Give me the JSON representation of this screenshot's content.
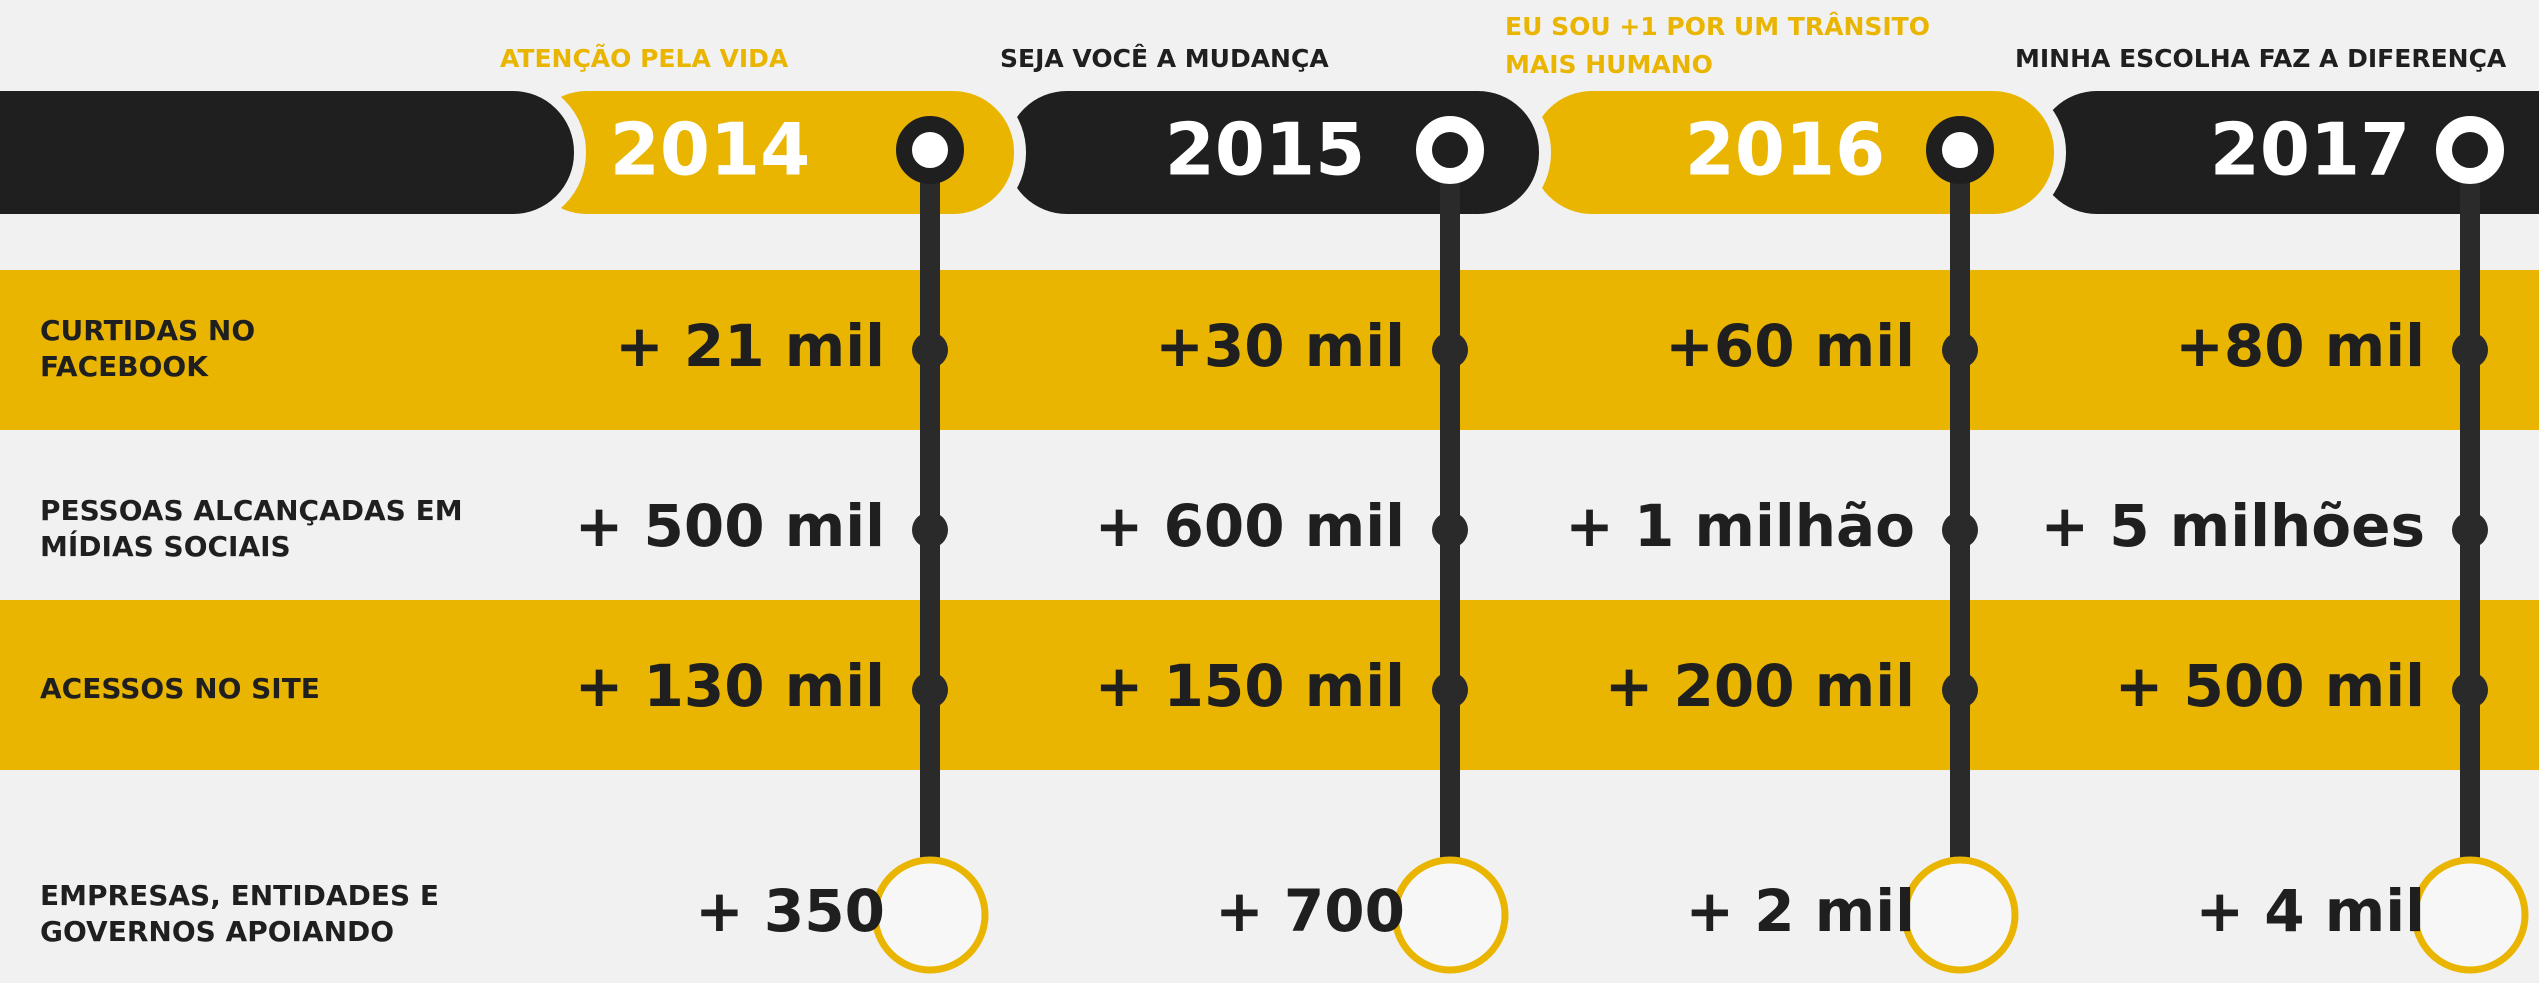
{
  "campaigns": [
    {
      "slogan": [
        "ATENÇÃO PELA VIDA"
      ],
      "year": "2014"
    },
    {
      "slogan": [
        "SEJA VOCÊ A MUDANÇA"
      ],
      "year": "2015"
    },
    {
      "slogan": [
        "EU SOU +1 POR UM TRÂNSITO",
        "MAIS HUMANO"
      ],
      "year": "2016"
    },
    {
      "slogan": [
        "MINHA ESCOLHA FAZ A DIFERENÇA"
      ],
      "year": "2017"
    }
  ],
  "rows": [
    {
      "label": [
        "CURTIDAS NO",
        "FACEBOOK"
      ],
      "values": [
        "+ 21 mil",
        "+30 mil",
        "+60 mil",
        "+80 mil"
      ]
    },
    {
      "label": [
        "PESSOAS ALCANÇADAS EM",
        "MÍDIAS SOCIAIS"
      ],
      "values": [
        "+ 500 mil",
        "+ 600 mil",
        "+ 1 milhão",
        "+ 5 milhões"
      ]
    },
    {
      "label": [
        "ACESSOS NO SITE"
      ],
      "values": [
        "+ 130 mil",
        "+ 150 mil",
        "+ 200 mil",
        "+ 500 mil"
      ]
    },
    {
      "label": [
        "EMPRESAS, ENTIDADES E",
        "GOVERNOS APOIANDO"
      ],
      "values": [
        "+ 350",
        "+ 700",
        "+ 2 mil",
        "+ 4 mil"
      ]
    }
  ]
}
